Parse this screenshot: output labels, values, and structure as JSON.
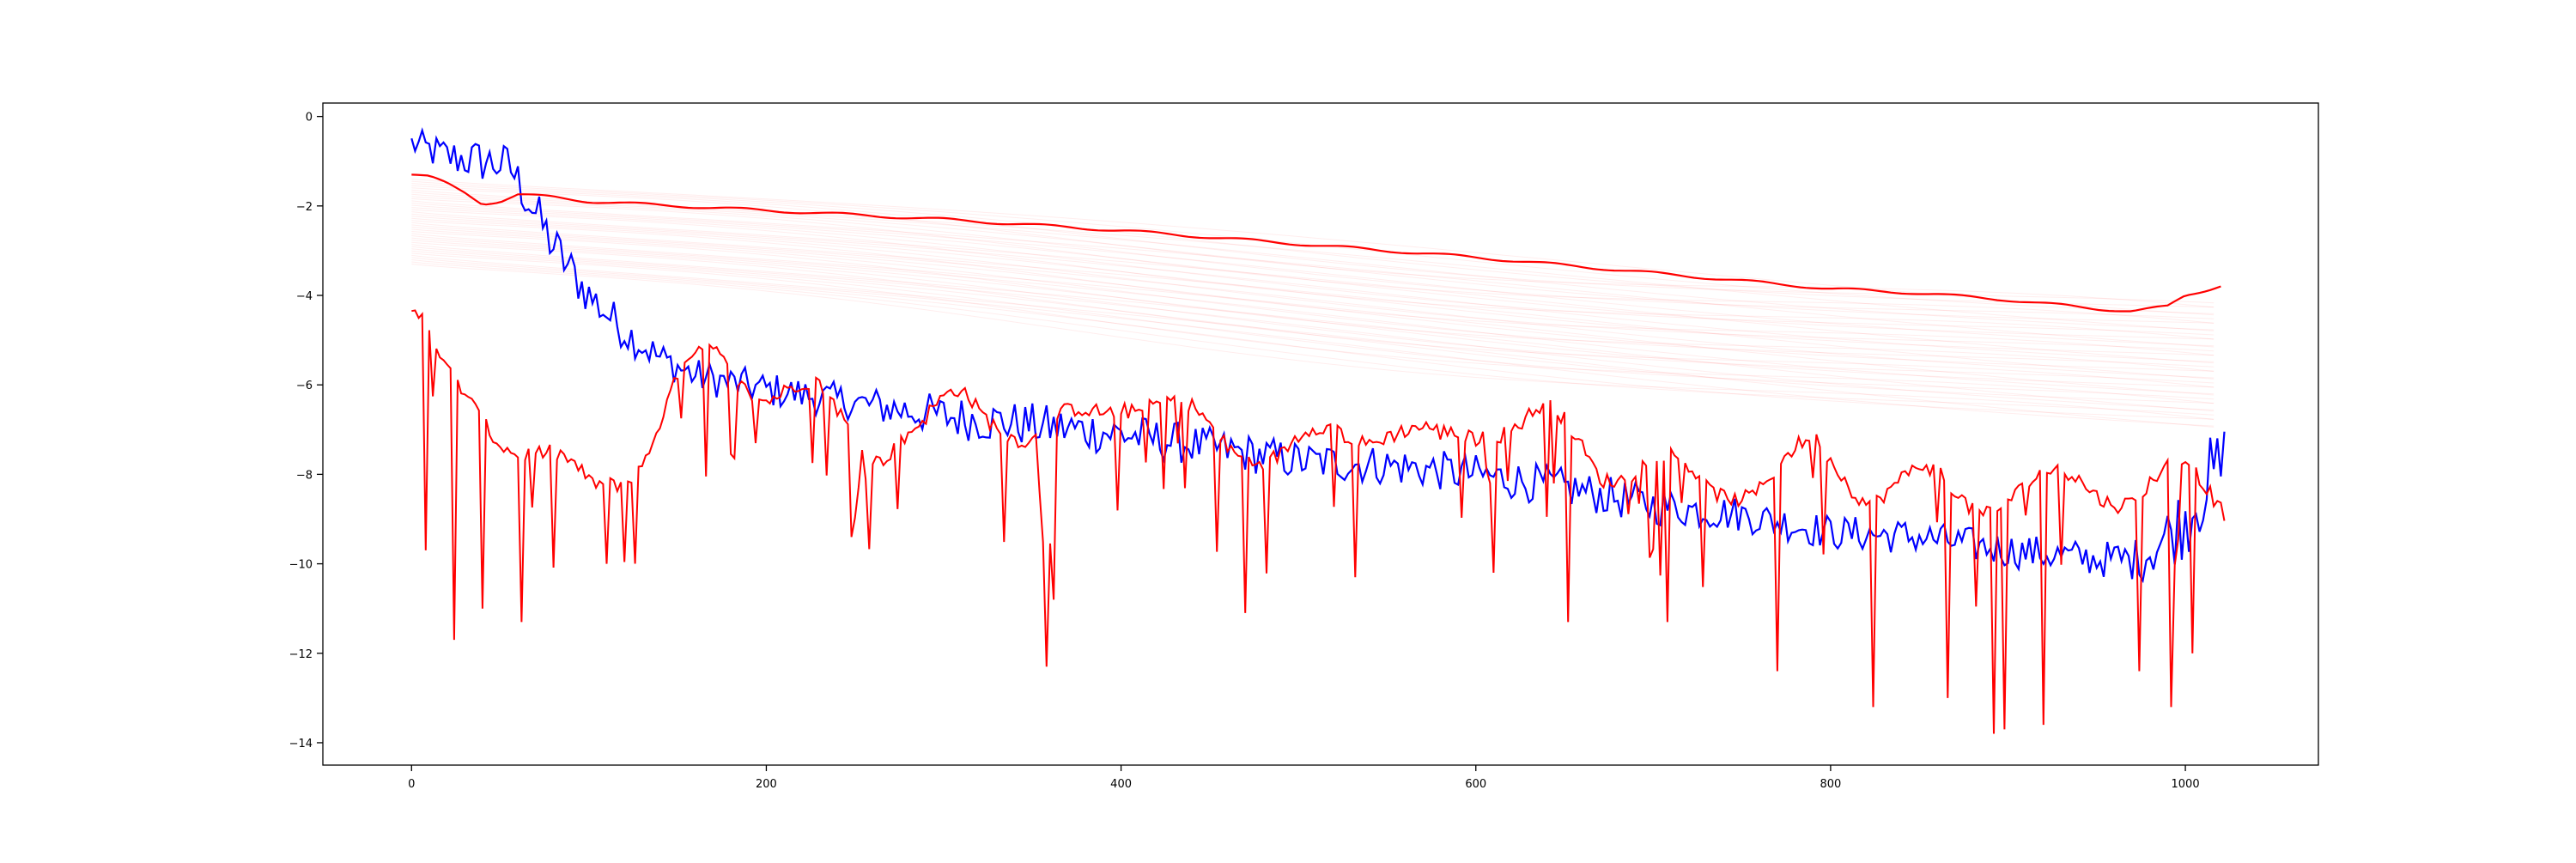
{
  "chart_data": {
    "type": "line",
    "title": "",
    "xlabel": "",
    "ylabel": "",
    "xlim": [
      -50,
      1075
    ],
    "ylim": [
      -14.5,
      0.3
    ],
    "grid": false,
    "legend": "none",
    "x_ticks": [
      0,
      200,
      400,
      600,
      800,
      1000
    ],
    "y_ticks": [
      0,
      -2,
      -4,
      -6,
      -8,
      -10,
      -12,
      -14
    ],
    "colors": {
      "blue": "#0000ff",
      "red": "#ff0000",
      "faint_red": "#ff0000"
    },
    "series": [
      {
        "color": "#0000ff",
        "style": "noisy",
        "x": [
          0,
          20,
          40,
          55,
          65,
          80,
          100,
          120,
          140,
          160,
          200,
          250,
          300,
          350,
          400,
          450,
          500,
          550,
          600,
          650,
          700,
          750,
          800,
          850,
          900,
          950,
          975,
          1000,
          1010,
          1022
        ],
        "y": [
          -0.6,
          -0.9,
          -1.0,
          -1.1,
          -1.8,
          -2.9,
          -4.0,
          -4.8,
          -5.4,
          -5.8,
          -6.1,
          -6.4,
          -6.7,
          -6.9,
          -7.1,
          -7.4,
          -7.7,
          -7.8,
          -8.0,
          -8.3,
          -8.7,
          -8.9,
          -9.3,
          -9.4,
          -9.7,
          -9.9,
          -9.9,
          -9.0,
          -8.3,
          -7.8
        ],
        "noise": [
          0.35,
          0.45,
          0.5,
          0.5,
          0.55,
          0.55,
          0.5,
          0.45,
          0.4,
          0.4,
          0.4,
          0.4,
          0.5,
          0.5,
          0.5,
          0.45,
          0.45,
          0.45,
          0.45,
          0.45,
          0.45,
          0.4,
          0.4,
          0.4,
          0.4,
          0.4,
          0.5,
          0.9,
          1.0,
          1.0
        ]
      },
      {
        "color": "#ff0000",
        "style": "smooth",
        "x": [
          0,
          10,
          20,
          30,
          40,
          50,
          60,
          80,
          100,
          150,
          200,
          300,
          400,
          500,
          600,
          700,
          800,
          850,
          900,
          950,
          970,
          990,
          1000,
          1010,
          1022
        ],
        "y": [
          -1.3,
          -1.35,
          -1.5,
          -1.7,
          -1.95,
          -1.9,
          -1.75,
          -1.8,
          -1.9,
          -2.0,
          -2.1,
          -2.3,
          -2.55,
          -2.85,
          -3.15,
          -3.5,
          -3.85,
          -3.95,
          -4.1,
          -4.3,
          -4.35,
          -4.25,
          -4.0,
          -3.9,
          -3.75
        ]
      },
      {
        "color": "#ff0000",
        "style": "spiky",
        "x": [
          0,
          20,
          50,
          80,
          100,
          130,
          150,
          170,
          200,
          230,
          260,
          290,
          310,
          330,
          350,
          370,
          400,
          430,
          460,
          490,
          520,
          550,
          580,
          610,
          640,
          670,
          700,
          730,
          760,
          790,
          820,
          850,
          880,
          910,
          940,
          970,
          1000,
          1022
        ],
        "y": [
          -4.2,
          -6.0,
          -7.0,
          -7.8,
          -8.3,
          -7.6,
          -6.1,
          -5.3,
          -6.1,
          -6.3,
          -7.4,
          -7.0,
          -6.2,
          -6.6,
          -7.3,
          -6.9,
          -6.2,
          -6.6,
          -7.2,
          -7.6,
          -7.1,
          -6.9,
          -7.4,
          -6.8,
          -6.7,
          -7.9,
          -7.6,
          -8.4,
          -8.1,
          -7.5,
          -8.3,
          -8.1,
          -8.6,
          -8.3,
          -8.2,
          -8.4,
          -8.0,
          -8.6
        ],
        "dips": [
          {
            "x": 8,
            "y": -9.7
          },
          {
            "x": 25,
            "y": -11.7
          },
          {
            "x": 40,
            "y": -11.0
          },
          {
            "x": 62,
            "y": -11.3
          },
          {
            "x": 110,
            "y": -10.0
          },
          {
            "x": 248,
            "y": -9.4
          },
          {
            "x": 358,
            "y": -12.3
          },
          {
            "x": 362,
            "y": -10.8
          },
          {
            "x": 470,
            "y": -11.1
          },
          {
            "x": 533,
            "y": -10.3
          },
          {
            "x": 610,
            "y": -10.2
          },
          {
            "x": 652,
            "y": -11.3
          },
          {
            "x": 708,
            "y": -11.3
          },
          {
            "x": 770,
            "y": -12.4
          },
          {
            "x": 825,
            "y": -13.2
          },
          {
            "x": 867,
            "y": -13.0
          },
          {
            "x": 893,
            "y": -13.8
          },
          {
            "x": 898,
            "y": -13.7
          },
          {
            "x": 920,
            "y": -13.6
          },
          {
            "x": 975,
            "y": -12.4
          },
          {
            "x": 993,
            "y": -13.2
          },
          {
            "x": 1005,
            "y": -12.0
          }
        ]
      }
    ],
    "faint_lines": {
      "color": "#ff0000",
      "count": 40,
      "y_start": [
        -1.4,
        -3.3
      ],
      "y_end": [
        -4.2,
        -7.0
      ]
    }
  }
}
